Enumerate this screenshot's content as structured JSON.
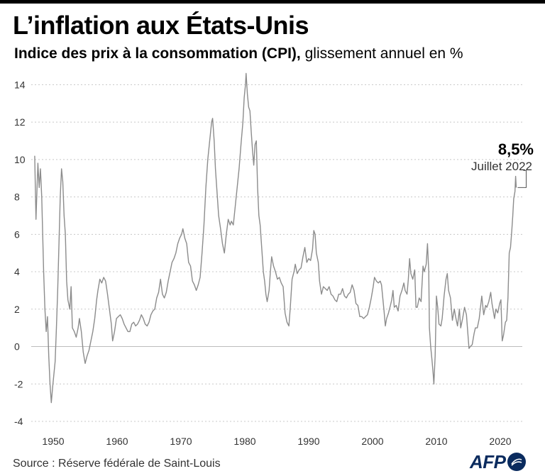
{
  "header": {
    "title": "L’inflation aux États-Unis",
    "subtitle_bold": "Indice des prix à la consommation (CPI),",
    "subtitle_rest": " glissement annuel en %"
  },
  "footer": {
    "source": "Source : Réserve fédérale de Saint-Louis",
    "logo_text": "AFP"
  },
  "colors": {
    "line": "#8c8c8c",
    "grid": "#c8c8c8",
    "logo": "#0a2b5e"
  },
  "chart_data": {
    "type": "line",
    "title": "L’inflation aux États-Unis",
    "subtitle": "Indice des prix à la consommation (CPI), glissement annuel en %",
    "xlabel": "",
    "ylabel": "",
    "xlim": [
      1947,
      2023
    ],
    "ylim": [
      -4,
      15
    ],
    "x_ticks": [
      1950,
      1960,
      1970,
      1980,
      1990,
      2000,
      2010,
      2020
    ],
    "y_ticks": [
      -4,
      -2,
      0,
      2,
      4,
      6,
      8,
      10,
      12,
      14
    ],
    "grid": "horizontal dotted",
    "annotation": {
      "value_label": "8,5%",
      "date_label": "Juillet 2022",
      "x": 2022.5,
      "y": 8.5
    },
    "series": [
      {
        "points": [
          [
            1947.1,
            10.2
          ],
          [
            1947.3,
            6.8
          ],
          [
            1947.6,
            9.8
          ],
          [
            1947.8,
            8.5
          ],
          [
            1948.0,
            9.5
          ],
          [
            1948.2,
            8.0
          ],
          [
            1948.5,
            4.0
          ],
          [
            1948.7,
            2.0
          ],
          [
            1948.9,
            0.8
          ],
          [
            1949.1,
            1.6
          ],
          [
            1949.3,
            -0.5
          ],
          [
            1949.5,
            -2.0
          ],
          [
            1949.7,
            -3.0
          ],
          [
            1949.9,
            -2.2
          ],
          [
            1950.1,
            -1.5
          ],
          [
            1950.3,
            -0.8
          ],
          [
            1950.5,
            1.0
          ],
          [
            1950.7,
            3.0
          ],
          [
            1950.9,
            5.5
          ],
          [
            1951.1,
            8.0
          ],
          [
            1951.3,
            9.5
          ],
          [
            1951.5,
            8.8
          ],
          [
            1951.7,
            7.0
          ],
          [
            1951.9,
            6.0
          ],
          [
            1952.1,
            3.5
          ],
          [
            1952.3,
            2.5
          ],
          [
            1952.6,
            2.0
          ],
          [
            1952.8,
            3.2
          ],
          [
            1953.0,
            1.0
          ],
          [
            1953.3,
            0.8
          ],
          [
            1953.6,
            0.5
          ],
          [
            1953.9,
            1.0
          ],
          [
            1954.1,
            1.5
          ],
          [
            1954.4,
            0.8
          ],
          [
            1954.7,
            -0.3
          ],
          [
            1955.0,
            -0.9
          ],
          [
            1955.3,
            -0.5
          ],
          [
            1955.6,
            -0.2
          ],
          [
            1955.9,
            0.3
          ],
          [
            1956.2,
            0.8
          ],
          [
            1956.5,
            1.5
          ],
          [
            1956.8,
            2.5
          ],
          [
            1957.0,
            3.0
          ],
          [
            1957.3,
            3.6
          ],
          [
            1957.6,
            3.4
          ],
          [
            1957.9,
            3.7
          ],
          [
            1958.2,
            3.5
          ],
          [
            1958.5,
            2.8
          ],
          [
            1958.8,
            2.0
          ],
          [
            1959.1,
            1.2
          ],
          [
            1959.3,
            0.3
          ],
          [
            1959.6,
            0.8
          ],
          [
            1959.9,
            1.5
          ],
          [
            1960.2,
            1.6
          ],
          [
            1960.5,
            1.7
          ],
          [
            1960.8,
            1.5
          ],
          [
            1961.1,
            1.2
          ],
          [
            1961.4,
            1.0
          ],
          [
            1961.7,
            0.8
          ],
          [
            1962.0,
            0.8
          ],
          [
            1962.3,
            1.2
          ],
          [
            1962.6,
            1.3
          ],
          [
            1962.9,
            1.1
          ],
          [
            1963.2,
            1.2
          ],
          [
            1963.5,
            1.4
          ],
          [
            1963.8,
            1.7
          ],
          [
            1964.1,
            1.5
          ],
          [
            1964.4,
            1.2
          ],
          [
            1964.7,
            1.1
          ],
          [
            1965.0,
            1.3
          ],
          [
            1965.3,
            1.7
          ],
          [
            1965.6,
            1.9
          ],
          [
            1965.9,
            2.0
          ],
          [
            1966.2,
            2.6
          ],
          [
            1966.5,
            2.9
          ],
          [
            1966.8,
            3.6
          ],
          [
            1967.1,
            2.8
          ],
          [
            1967.4,
            2.6
          ],
          [
            1967.7,
            2.9
          ],
          [
            1968.0,
            3.5
          ],
          [
            1968.3,
            4.0
          ],
          [
            1968.6,
            4.5
          ],
          [
            1968.9,
            4.7
          ],
          [
            1969.2,
            5.0
          ],
          [
            1969.5,
            5.5
          ],
          [
            1969.8,
            5.8
          ],
          [
            1970.1,
            6.0
          ],
          [
            1970.3,
            6.3
          ],
          [
            1970.6,
            5.8
          ],
          [
            1970.9,
            5.5
          ],
          [
            1971.2,
            4.5
          ],
          [
            1971.5,
            4.3
          ],
          [
            1971.8,
            3.5
          ],
          [
            1972.1,
            3.3
          ],
          [
            1972.4,
            3.0
          ],
          [
            1972.7,
            3.3
          ],
          [
            1973.0,
            3.7
          ],
          [
            1973.3,
            5.0
          ],
          [
            1973.6,
            6.5
          ],
          [
            1973.9,
            8.5
          ],
          [
            1974.2,
            10.0
          ],
          [
            1974.5,
            11.0
          ],
          [
            1974.8,
            12.0
          ],
          [
            1974.95,
            12.2
          ],
          [
            1975.2,
            11.0
          ],
          [
            1975.4,
            9.5
          ],
          [
            1975.7,
            8.0
          ],
          [
            1975.9,
            7.0
          ],
          [
            1976.2,
            6.3
          ],
          [
            1976.5,
            5.5
          ],
          [
            1976.8,
            5.0
          ],
          [
            1977.1,
            6.0
          ],
          [
            1977.4,
            6.8
          ],
          [
            1977.7,
            6.5
          ],
          [
            1977.9,
            6.7
          ],
          [
            1978.2,
            6.5
          ],
          [
            1978.5,
            7.5
          ],
          [
            1978.8,
            8.5
          ],
          [
            1979.1,
            9.5
          ],
          [
            1979.4,
            10.8
          ],
          [
            1979.7,
            12.0
          ],
          [
            1979.9,
            13.3
          ],
          [
            1980.1,
            14.0
          ],
          [
            1980.2,
            14.6
          ],
          [
            1980.4,
            13.5
          ],
          [
            1980.6,
            12.8
          ],
          [
            1980.8,
            12.6
          ],
          [
            1981.0,
            11.5
          ],
          [
            1981.2,
            10.5
          ],
          [
            1981.4,
            9.7
          ],
          [
            1981.6,
            10.8
          ],
          [
            1981.8,
            11.0
          ],
          [
            1982.0,
            8.5
          ],
          [
            1982.2,
            7.0
          ],
          [
            1982.4,
            6.5
          ],
          [
            1982.7,
            5.0
          ],
          [
            1982.9,
            4.0
          ],
          [
            1983.1,
            3.5
          ],
          [
            1983.3,
            2.8
          ],
          [
            1983.5,
            2.4
          ],
          [
            1983.8,
            3.0
          ],
          [
            1984.0,
            4.0
          ],
          [
            1984.2,
            4.8
          ],
          [
            1984.5,
            4.3
          ],
          [
            1984.8,
            4.0
          ],
          [
            1985.1,
            3.6
          ],
          [
            1985.4,
            3.7
          ],
          [
            1985.7,
            3.4
          ],
          [
            1986.0,
            3.2
          ],
          [
            1986.3,
            1.8
          ],
          [
            1986.6,
            1.3
          ],
          [
            1986.9,
            1.1
          ],
          [
            1987.1,
            2.0
          ],
          [
            1987.4,
            3.6
          ],
          [
            1987.7,
            4.0
          ],
          [
            1987.9,
            4.4
          ],
          [
            1988.2,
            3.9
          ],
          [
            1988.5,
            4.1
          ],
          [
            1988.8,
            4.2
          ],
          [
            1989.1,
            4.8
          ],
          [
            1989.4,
            5.3
          ],
          [
            1989.7,
            4.5
          ],
          [
            1990.0,
            4.7
          ],
          [
            1990.3,
            4.6
          ],
          [
            1990.6,
            5.2
          ],
          [
            1990.8,
            6.2
          ],
          [
            1991.0,
            6.0
          ],
          [
            1991.2,
            5.0
          ],
          [
            1991.5,
            4.5
          ],
          [
            1991.7,
            3.5
          ],
          [
            1992.0,
            2.8
          ],
          [
            1992.3,
            3.2
          ],
          [
            1992.6,
            3.1
          ],
          [
            1992.9,
            3.0
          ],
          [
            1993.2,
            3.2
          ],
          [
            1993.5,
            2.8
          ],
          [
            1993.8,
            2.7
          ],
          [
            1994.1,
            2.5
          ],
          [
            1994.4,
            2.4
          ],
          [
            1994.7,
            2.8
          ],
          [
            1995.0,
            2.8
          ],
          [
            1995.3,
            3.1
          ],
          [
            1995.6,
            2.7
          ],
          [
            1995.9,
            2.6
          ],
          [
            1996.2,
            2.8
          ],
          [
            1996.5,
            2.9
          ],
          [
            1996.8,
            3.3
          ],
          [
            1997.1,
            3.0
          ],
          [
            1997.4,
            2.3
          ],
          [
            1997.7,
            2.2
          ],
          [
            1998.0,
            1.6
          ],
          [
            1998.3,
            1.6
          ],
          [
            1998.6,
            1.5
          ],
          [
            1998.9,
            1.6
          ],
          [
            1999.2,
            1.7
          ],
          [
            1999.5,
            2.1
          ],
          [
            1999.8,
            2.6
          ],
          [
            2000.1,
            3.2
          ],
          [
            2000.3,
            3.7
          ],
          [
            2000.6,
            3.5
          ],
          [
            2000.9,
            3.4
          ],
          [
            2001.2,
            3.5
          ],
          [
            2001.4,
            3.3
          ],
          [
            2001.6,
            2.6
          ],
          [
            2001.8,
            1.9
          ],
          [
            2002.0,
            1.1
          ],
          [
            2002.2,
            1.5
          ],
          [
            2002.5,
            1.8
          ],
          [
            2002.8,
            2.2
          ],
          [
            2003.0,
            2.5
          ],
          [
            2003.2,
            3.0
          ],
          [
            2003.4,
            2.1
          ],
          [
            2003.7,
            2.2
          ],
          [
            2004.0,
            1.9
          ],
          [
            2004.3,
            2.7
          ],
          [
            2004.6,
            3.0
          ],
          [
            2004.9,
            3.4
          ],
          [
            2005.1,
            3.0
          ],
          [
            2005.4,
            2.8
          ],
          [
            2005.6,
            3.6
          ],
          [
            2005.8,
            4.7
          ],
          [
            2006.0,
            3.9
          ],
          [
            2006.3,
            3.6
          ],
          [
            2006.6,
            4.1
          ],
          [
            2006.8,
            2.1
          ],
          [
            2007.0,
            2.1
          ],
          [
            2007.3,
            2.6
          ],
          [
            2007.6,
            2.4
          ],
          [
            2007.9,
            4.3
          ],
          [
            2008.1,
            4.0
          ],
          [
            2008.4,
            4.4
          ],
          [
            2008.6,
            5.5
          ],
          [
            2008.8,
            4.0
          ],
          [
            2008.9,
            1.0
          ],
          [
            2009.1,
            0.0
          ],
          [
            2009.3,
            -0.7
          ],
          [
            2009.5,
            -1.5
          ],
          [
            2009.6,
            -2.0
          ],
          [
            2009.8,
            -0.5
          ],
          [
            2010.0,
            2.7
          ],
          [
            2010.2,
            2.1
          ],
          [
            2010.4,
            1.2
          ],
          [
            2010.7,
            1.1
          ],
          [
            2010.9,
            1.5
          ],
          [
            2011.2,
            2.7
          ],
          [
            2011.5,
            3.6
          ],
          [
            2011.7,
            3.9
          ],
          [
            2011.9,
            3.0
          ],
          [
            2012.2,
            2.6
          ],
          [
            2012.5,
            1.4
          ],
          [
            2012.8,
            2.0
          ],
          [
            2013.0,
            1.6
          ],
          [
            2013.3,
            1.1
          ],
          [
            2013.6,
            2.0
          ],
          [
            2013.8,
            1.0
          ],
          [
            2014.1,
            1.5
          ],
          [
            2014.4,
            2.1
          ],
          [
            2014.7,
            1.7
          ],
          [
            2014.9,
            0.8
          ],
          [
            2015.1,
            -0.1
          ],
          [
            2015.3,
            0.0
          ],
          [
            2015.6,
            0.1
          ],
          [
            2015.9,
            0.7
          ],
          [
            2016.1,
            1.0
          ],
          [
            2016.4,
            1.0
          ],
          [
            2016.7,
            1.5
          ],
          [
            2016.9,
            2.1
          ],
          [
            2017.1,
            2.7
          ],
          [
            2017.4,
            1.7
          ],
          [
            2017.7,
            2.2
          ],
          [
            2017.9,
            2.1
          ],
          [
            2018.2,
            2.4
          ],
          [
            2018.5,
            2.9
          ],
          [
            2018.7,
            2.3
          ],
          [
            2018.9,
            1.9
          ],
          [
            2019.1,
            1.5
          ],
          [
            2019.3,
            2.0
          ],
          [
            2019.6,
            1.8
          ],
          [
            2019.9,
            2.3
          ],
          [
            2020.1,
            2.5
          ],
          [
            2020.3,
            0.3
          ],
          [
            2020.5,
            0.6
          ],
          [
            2020.8,
            1.3
          ],
          [
            2021.0,
            1.4
          ],
          [
            2021.2,
            2.6
          ],
          [
            2021.4,
            5.0
          ],
          [
            2021.6,
            5.3
          ],
          [
            2021.8,
            6.2
          ],
          [
            2021.95,
            7.0
          ],
          [
            2022.1,
            7.9
          ],
          [
            2022.3,
            8.3
          ],
          [
            2022.4,
            9.1
          ],
          [
            2022.5,
            8.5
          ]
        ]
      }
    ]
  }
}
